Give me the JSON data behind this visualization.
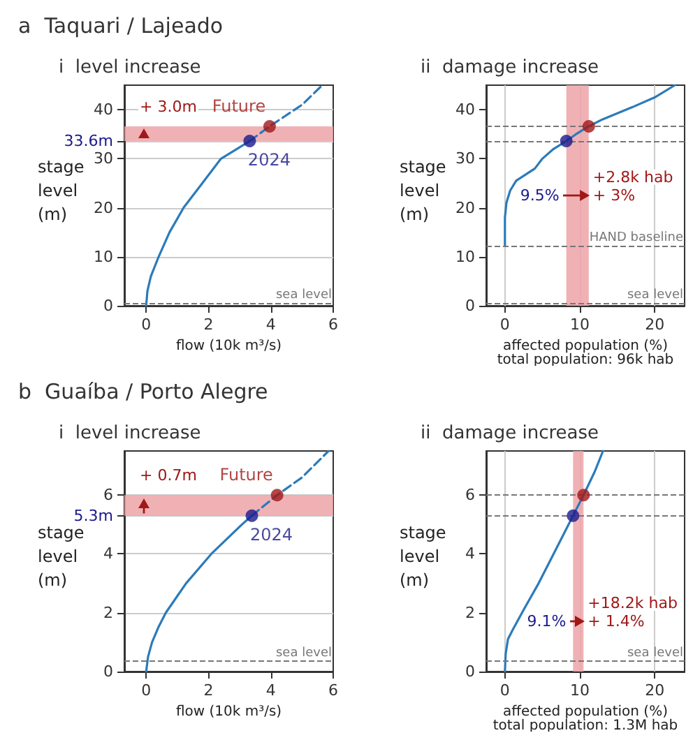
{
  "chart_data": [
    {
      "type": "line",
      "subtitle": "a  Taquari / Lajeado",
      "title": "i  level increase",
      "xlabel": "flow (10k m³/s)",
      "ylabel": "stage level (m)",
      "xlim": [
        -0.7,
        6
      ],
      "xticks": [
        0,
        2,
        4,
        6
      ],
      "ylim": [
        0,
        45
      ],
      "yticks": [
        0,
        10,
        20,
        30,
        {
          "value": 33.6,
          "label": "33.6m"
        },
        40
      ],
      "grid": "y",
      "series": [
        {
          "type": "line",
          "color": "#2b7bba",
          "marker": "none",
          "line_style": "solid",
          "x": [
            0,
            0.04,
            0.15,
            0.4,
            0.75,
            1.2,
            1.8,
            2.4,
            3.32
          ],
          "values": [
            0,
            3,
            6,
            10,
            15,
            20,
            25,
            30,
            33.6
          ]
        },
        {
          "type": "line",
          "color": "#2b7bba",
          "marker": "none",
          "line_style": "dashed",
          "x": [
            3.32,
            3.96,
            5,
            5.65
          ],
          "values": [
            33.6,
            36.6,
            41,
            45
          ]
        },
        {
          "type": "scatter",
          "name": "2024",
          "color": "#1a1a8c",
          "marker": "circle",
          "x": [
            3.32
          ],
          "values": [
            33.6
          ]
        },
        {
          "type": "scatter",
          "name": "Future",
          "color": "#a01818",
          "marker": "circle",
          "x": [
            3.96
          ],
          "values": [
            36.6
          ]
        }
      ],
      "bands": [
        {
          "axis": "y",
          "from": 33.6,
          "to": 36.6,
          "color": "#eda3a8"
        }
      ],
      "ref_lines": [
        {
          "axis": "y",
          "value": 0.5,
          "label": "sea level",
          "color": "#777777",
          "line_style": "dashed"
        }
      ],
      "annotations": [
        "+ 3.0m"
      ]
    },
    {
      "type": "line",
      "title": "ii  damage increase",
      "xlabel": "affected population (%)",
      "ylabel": "stage level (m)",
      "xlim": [
        -2.5,
        24
      ],
      "xticks": [
        0,
        10,
        20
      ],
      "ylim": [
        0,
        45
      ],
      "yticks": [
        0,
        10,
        20,
        30,
        40
      ],
      "grid": "x",
      "series": [
        {
          "type": "line",
          "color": "#2b7bba",
          "marker": "none",
          "line_style": "solid",
          "x": [
            0,
            0,
            0.2,
            0.7,
            1.5,
            3,
            4,
            5,
            6.5,
            8.2,
            9.5,
            11.2,
            13,
            17,
            20,
            22.7
          ],
          "values": [
            12.3,
            18,
            21,
            23.5,
            25.5,
            27,
            28,
            30,
            32,
            33.6,
            35,
            36.6,
            38,
            40.5,
            42.5,
            45
          ]
        },
        {
          "type": "scatter",
          "color": "#1a1a8c",
          "marker": "circle",
          "x": [
            8.2
          ],
          "values": [
            33.6
          ]
        },
        {
          "type": "scatter",
          "color": "#a01818",
          "marker": "circle",
          "x": [
            11.2
          ],
          "values": [
            36.6
          ]
        }
      ],
      "bands": [
        {
          "axis": "x",
          "from": 8.2,
          "to": 11.2,
          "color": "#eda3a8"
        }
      ],
      "ref_lines": [
        {
          "axis": "y",
          "value": 0.5,
          "label": "sea level",
          "color": "#777777",
          "line_style": "dashed"
        },
        {
          "axis": "y",
          "value": 12.3,
          "label": "HAND baseline",
          "color": "#777777",
          "line_style": "dashed"
        },
        {
          "axis": "y",
          "value": 33.6,
          "color": "#777777",
          "line_style": "dashed"
        },
        {
          "axis": "y",
          "value": 36.6,
          "color": "#777777",
          "line_style": "dashed"
        }
      ],
      "annotations": [
        "9.5%",
        "+2.8k hab",
        "+ 3%",
        "total population: 96k hab"
      ]
    },
    {
      "type": "line",
      "subtitle": "b  Guaíba / Porto Alegre",
      "title": "i  level increase",
      "xlabel": "flow (10k m³/s)",
      "ylabel": "stage level (m)",
      "xlim": [
        -0.7,
        6
      ],
      "xticks": [
        0,
        2,
        4,
        6
      ],
      "ylim": [
        0,
        7.5
      ],
      "yticks": [
        0,
        2,
        4,
        {
          "value": 5.3,
          "label": "5.3m"
        },
        6
      ],
      "grid": "y",
      "series": [
        {
          "type": "line",
          "color": "#2b7bba",
          "marker": "none",
          "line_style": "solid",
          "x": [
            0,
            0.06,
            0.19,
            0.39,
            0.63,
            1.28,
            2.09,
            3.07,
            3.39
          ],
          "values": [
            0,
            0.5,
            1,
            1.5,
            2,
            3,
            4,
            5,
            5.3
          ]
        },
        {
          "type": "line",
          "color": "#2b7bba",
          "marker": "none",
          "line_style": "dashed",
          "x": [
            3.39,
            4.2,
            5,
            5.85
          ],
          "values": [
            5.3,
            6,
            6.6,
            7.5
          ]
        },
        {
          "type": "scatter",
          "name": "2024",
          "color": "#1a1a8c",
          "marker": "circle",
          "x": [
            3.39
          ],
          "values": [
            5.3
          ]
        },
        {
          "type": "scatter",
          "name": "Future",
          "color": "#a01818",
          "marker": "circle",
          "x": [
            4.2
          ],
          "values": [
            6
          ]
        }
      ],
      "bands": [
        {
          "axis": "y",
          "from": 5.3,
          "to": 6,
          "color": "#eda3a8"
        }
      ],
      "ref_lines": [
        {
          "axis": "y",
          "value": 0.35,
          "label": "sea level",
          "color": "#777777",
          "line_style": "dashed"
        }
      ],
      "annotations": [
        "+ 0.7m"
      ]
    },
    {
      "type": "line",
      "title": "ii  damage increase",
      "xlabel": "affected population (%)",
      "ylabel": "stage level (m)",
      "xlim": [
        -2.5,
        24
      ],
      "xticks": [
        0,
        10,
        20
      ],
      "ylim": [
        0,
        7.5
      ],
      "yticks": [
        0,
        2,
        4,
        6
      ],
      "grid": "x",
      "series": [
        {
          "type": "line",
          "color": "#2b7bba",
          "marker": "none",
          "line_style": "solid",
          "x": [
            0,
            0.1,
            0.4,
            1,
            2.5,
            4.5,
            6.5,
            9.1,
            10.5,
            12,
            13.1
          ],
          "values": [
            0,
            0.6,
            1.1,
            1.4,
            2.1,
            3,
            4,
            5.3,
            6,
            6.8,
            7.5
          ]
        },
        {
          "type": "scatter",
          "color": "#1a1a8c",
          "marker": "circle",
          "x": [
            9.1
          ],
          "values": [
            5.3
          ]
        },
        {
          "type": "scatter",
          "color": "#a01818",
          "marker": "circle",
          "x": [
            10.5
          ],
          "values": [
            6
          ]
        }
      ],
      "bands": [
        {
          "axis": "x",
          "from": 9.1,
          "to": 10.5,
          "color": "#eda3a8"
        }
      ],
      "ref_lines": [
        {
          "axis": "y",
          "value": 0.35,
          "label": "sea level",
          "color": "#777777",
          "line_style": "dashed"
        },
        {
          "axis": "y",
          "value": 5.3,
          "color": "#777777",
          "line_style": "dashed"
        },
        {
          "axis": "y",
          "value": 6,
          "color": "#777777",
          "line_style": "dashed"
        }
      ],
      "annotations": [
        "9.1%",
        "+18.2k hab",
        "+ 1.4%",
        "total population: 1.3M hab"
      ]
    }
  ]
}
